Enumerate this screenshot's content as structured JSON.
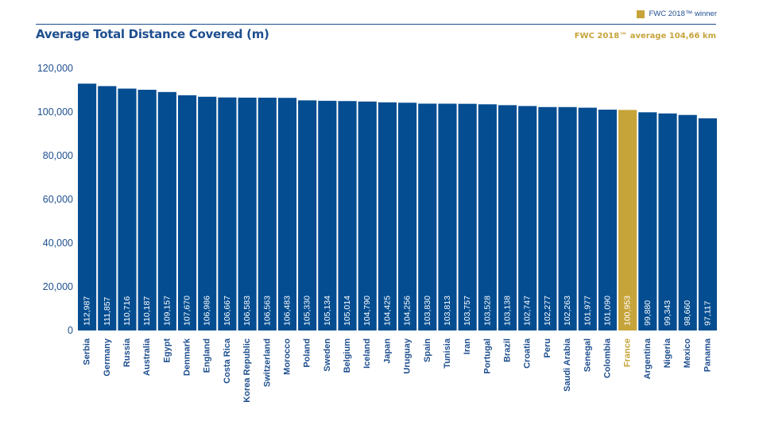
{
  "header": {
    "title": "Average Total Distance Covered (m)",
    "average_note": "FWC 2018™ average 104,66 km",
    "legend_label": "FWC 2018™ winner"
  },
  "colors": {
    "bar": "#044d91",
    "highlight": "#c6a43a",
    "text": "#1f4f8f"
  },
  "chart_data": {
    "type": "bar",
    "title": "Average Total Distance Covered (m)",
    "xlabel": "",
    "ylabel": "",
    "ylim": [
      0,
      120000
    ],
    "yticks": [
      "0",
      "20,000",
      "40,000",
      "60,000",
      "80,000",
      "100,000",
      "120,000"
    ],
    "categories": [
      "Serbia",
      "Germany",
      "Russia",
      "Australia",
      "Egypt",
      "Denmark",
      "England",
      "Costa Rica",
      "Korea Republic",
      "Switzerland",
      "Morocco",
      "Poland",
      "Sweden",
      "Belgium",
      "Iceland",
      "Japan",
      "Uruguay",
      "Spain",
      "Tunisia",
      "Iran",
      "Portugal",
      "Brazil",
      "Croatia",
      "Peru",
      "Saudi Arabia",
      "Senegal",
      "Colombia",
      "France",
      "Argentina",
      "Nigeria",
      "Mexico",
      "Panama"
    ],
    "values": [
      112987,
      111857,
      110716,
      110187,
      109157,
      107670,
      106986,
      106667,
      106583,
      106563,
      106483,
      105330,
      105134,
      105014,
      104790,
      104425,
      104256,
      103830,
      103813,
      103757,
      103528,
      103138,
      102747,
      102277,
      102263,
      101977,
      101090,
      100953,
      99880,
      99343,
      98660,
      97117
    ],
    "value_labels": [
      "112,987",
      "111,857",
      "110,716",
      "110,187",
      "109,157",
      "107,670",
      "106,986",
      "106,667",
      "106,583",
      "106,563",
      "106,483",
      "105,330",
      "105,134",
      "105,014",
      "104,790",
      "104,425",
      "104,256",
      "103,830",
      "103,813",
      "103,757",
      "103,528",
      "103,138",
      "102,747",
      "102,277",
      "102,263",
      "101,977",
      "101,090",
      "100,953",
      "99,880",
      "99,343",
      "98,660",
      "97,117"
    ],
    "highlight_category": "France",
    "grid": false,
    "legend": "top-right"
  }
}
